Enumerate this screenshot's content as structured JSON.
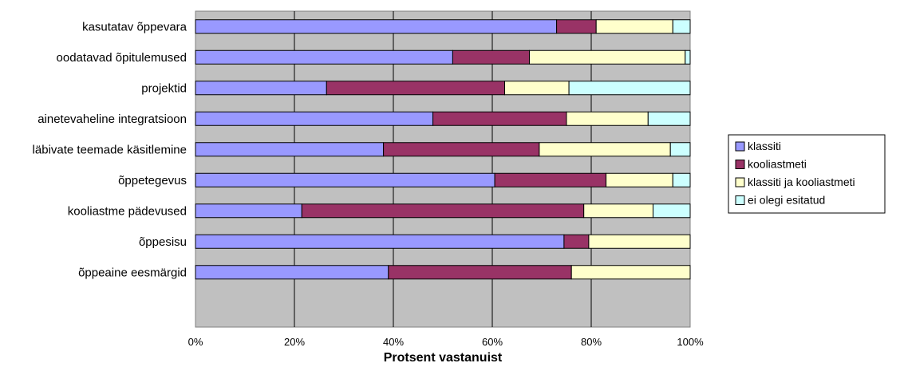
{
  "chart_data": {
    "type": "bar",
    "orientation": "horizontal",
    "stacked": "percent",
    "title": "",
    "xlabel": "Protsent vastanuist",
    "ylabel": "",
    "xlim": [
      0,
      100
    ],
    "x_ticks": [
      "0%",
      "20%",
      "40%",
      "60%",
      "80%",
      "100%"
    ],
    "grid": "vertical",
    "plot_background": "#c0c0c0",
    "legend_position": "right",
    "categories": [
      "kasutatav õppevara",
      "oodatavad õpitulemused",
      "projektid",
      "ainetevaheline integratsioon",
      "läbivate teemade käsitlemine",
      "õppetegevus",
      "kooliastme pädevused",
      "õppesisu",
      "õppeaine eesmärgid"
    ],
    "series": [
      {
        "name": "klassiti",
        "color": "#9999ff",
        "values": [
          73,
          52,
          26.5,
          48,
          38,
          60.5,
          21.5,
          74.5,
          39
        ]
      },
      {
        "name": "kooliastmeti",
        "color": "#993366",
        "values": [
          8,
          15.5,
          36,
          27,
          31.5,
          22.5,
          57,
          5,
          37
        ]
      },
      {
        "name": "klassiti ja kooliastmeti",
        "color": "#ffffcc",
        "values": [
          15.5,
          31.5,
          13,
          16.5,
          26.5,
          13.5,
          14,
          20.5,
          24
        ]
      },
      {
        "name": "ei olegi esitatud",
        "color": "#ccffff",
        "values": [
          3.5,
          1,
          24.5,
          8.5,
          4,
          3.5,
          7.5,
          0,
          0
        ]
      }
    ]
  }
}
